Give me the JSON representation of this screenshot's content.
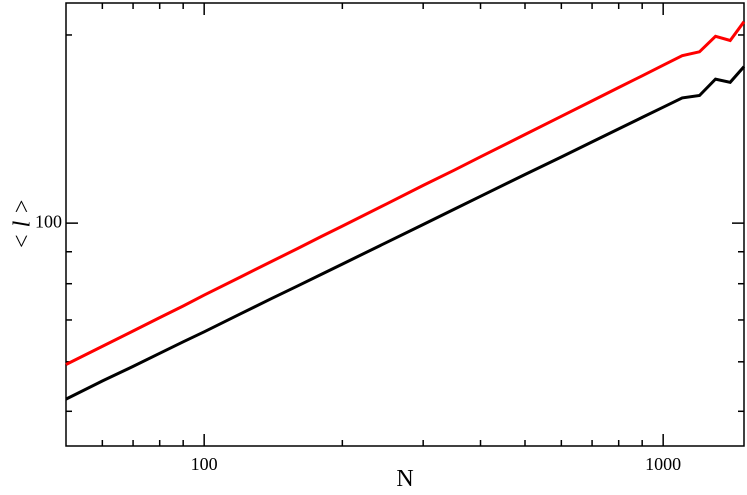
{
  "chart_data": {
    "type": "line",
    "x_label": "N",
    "y_label": "< l >",
    "x": [
      50,
      60,
      70,
      80,
      90,
      100,
      120,
      140,
      160,
      180,
      200,
      250,
      300,
      350,
      400,
      500,
      600,
      700,
      800,
      900,
      1000,
      1100,
      1200,
      1300,
      1400,
      1500
    ],
    "series": [
      {
        "color": "#ff0000",
        "values": [
          59.4,
          63.5,
          67.2,
          70.6,
          73.7,
          76.7,
          82.0,
          86.8,
          91.1,
          95.2,
          98.9,
          107.4,
          114.9,
          121.5,
          127.7,
          138.6,
          148.2,
          156.9,
          164.8,
          172.1,
          178.9,
          185.3,
          188,
          199,
          196,
          210
        ]
      },
      {
        "color": "#000000",
        "values": [
          52.3,
          55.9,
          59.0,
          61.9,
          64.6,
          67.0,
          71.6,
          75.7,
          79.4,
          82.8,
          86.0,
          93.2,
          99.5,
          105.2,
          110.4,
          119.6,
          127.6,
          134.9,
          141.5,
          147.6,
          153.3,
          158.6,
          160,
          170,
          168,
          178
        ]
      }
    ],
    "xlim": [
      50,
      1500
    ],
    "ylim": [
      44,
      225
    ],
    "xticks": [
      100,
      1000
    ],
    "yticks": [
      100
    ],
    "xminorticks": [
      60,
      70,
      80,
      90,
      200,
      300,
      400,
      500,
      600,
      700,
      800,
      900
    ],
    "yminorticks": [
      50,
      60,
      70,
      80,
      90,
      200
    ],
    "xlog": true,
    "ylog": true
  }
}
